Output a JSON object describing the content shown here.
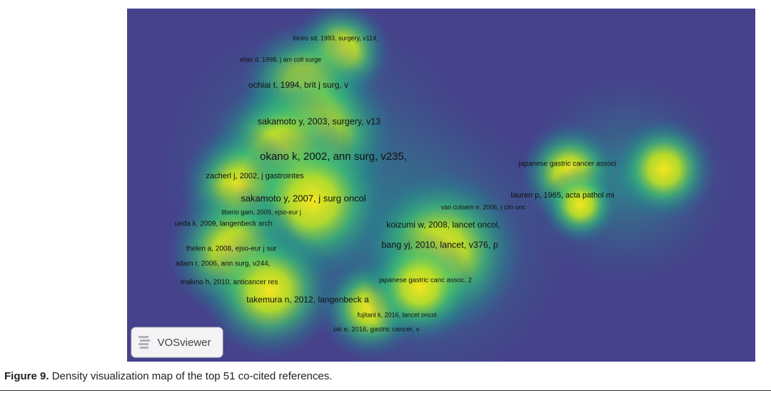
{
  "figure": {
    "labels": [
      "bines sd, 1993, surgery, v114,",
      "elias d, 1998, j am coll surge",
      "ochiai t, 1994, brit j surg, v",
      "sakamoto y, 2003, surgery, v13",
      "okano k, 2002, ann surg, v235,",
      "zacherl j, 2002, j gastrointes",
      "japanese gastric cancer associ",
      "lauren p, 1965, acta pathol mi",
      "sakamoto y, 2007, j surg oncol",
      "van cutsem e, 2006, j clin onc",
      "tiberio gam, 2009, ejso-eur j",
      "ueda k, 2009, langenbeck arch",
      "koizumi w, 2008, lancet oncol,",
      "bang yj, 2010, lancet, v376, p",
      "thelen a, 2008, ejso-eur j sur",
      "adam r, 2006, ann surg, v244,",
      "japanese gastric canc assoc, 2",
      "makino h, 2010, anticancer res",
      "takemura n, 2012, langenbeck a",
      "fujitani k, 2016, lancet oncol",
      "oki e, 2016, gastric cancer, v"
    ],
    "logo": "VOSviewer",
    "caption": {
      "label": "Figure 9.",
      "text": "Density visualization map of the top 51 co-cited references."
    }
  }
}
